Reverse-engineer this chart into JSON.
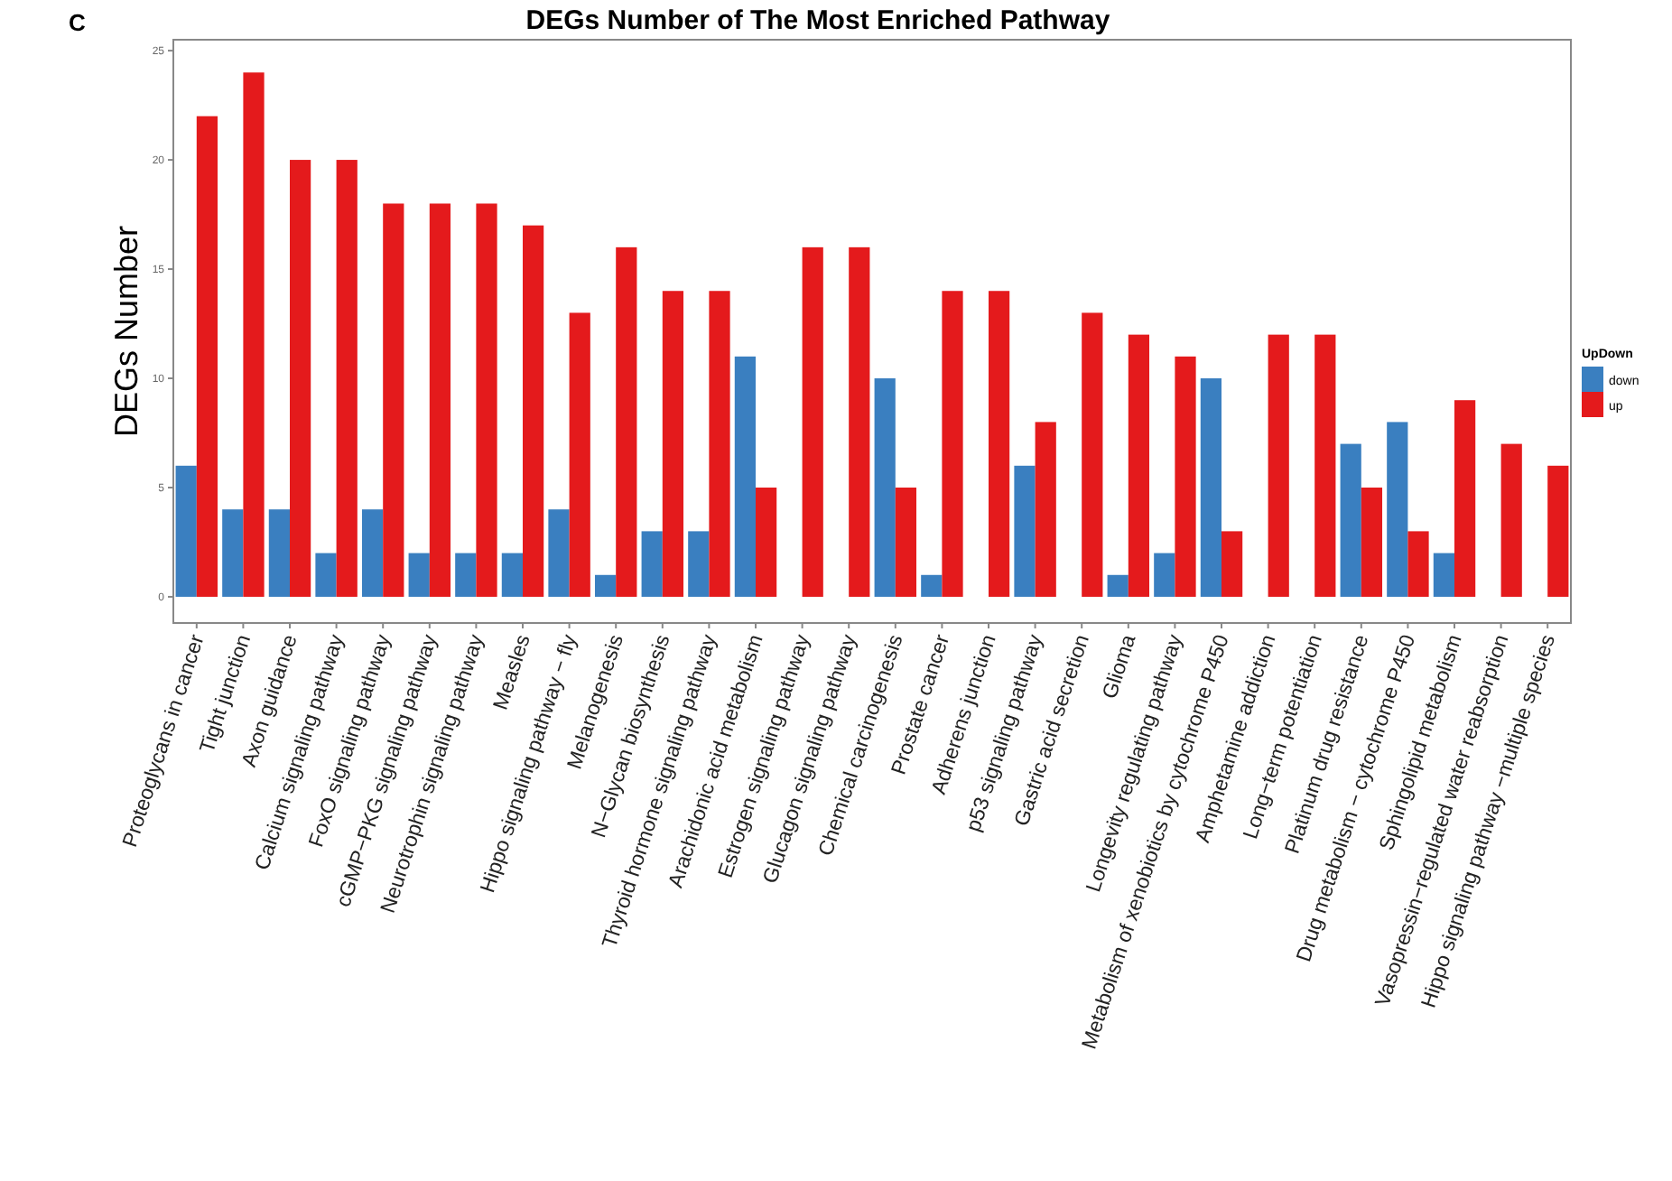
{
  "chart_data": {
    "type": "bar",
    "title": "DEGs Number of The Most Enriched Pathway",
    "ylabel": "DEGs Number",
    "legend_title": "UpDown",
    "annotations": [
      "C"
    ],
    "categories": [
      "Proteoglycans in cancer",
      "Tight junction",
      "Axon guidance",
      "Calcium signaling pathway",
      "FoxO signaling pathway",
      "cGMP−PKG signaling pathway",
      "Neurotrophin signaling pathway",
      "Measles",
      "Hippo signaling pathway − fly",
      "Melanogenesis",
      "N−Glycan biosynthesis",
      "Thyroid hormone signaling pathway",
      "Arachidonic acid metabolism",
      "Estrogen signaling pathway",
      "Glucagon signaling pathway",
      "Chemical carcinogenesis",
      "Prostate cancer",
      "Adherens junction",
      "p53 signaling pathway",
      "Gastric acid secretion",
      "Glioma",
      "Longevity regulating pathway",
      "Metabolism of xenobiotics by cytochrome P450",
      "Amphetamine addiction",
      "Long−term potentiation",
      "Platinum drug resistance",
      "Drug metabolism − cytochrome P450",
      "Sphingolipid metabolism",
      "Vasopressin−regulated water reabsorption",
      "Hippo signaling pathway −multiple species"
    ],
    "series": [
      {
        "name": "down",
        "color": "#3a7fc0",
        "values": [
          6,
          4,
          4,
          2,
          4,
          2,
          2,
          2,
          4,
          1,
          3,
          3,
          11,
          null,
          null,
          10,
          1,
          null,
          6,
          null,
          1,
          2,
          10,
          null,
          null,
          7,
          8,
          2,
          null,
          null
        ]
      },
      {
        "name": "up",
        "color": "#e41a1c",
        "values": [
          22,
          24,
          20,
          20,
          18,
          18,
          18,
          17,
          13,
          16,
          14,
          14,
          5,
          16,
          16,
          5,
          14,
          14,
          8,
          13,
          12,
          11,
          3,
          12,
          12,
          5,
          3,
          9,
          7,
          6
        ]
      }
    ],
    "ylim": [
      -1.2,
      25.5
    ],
    "yticks": [
      0,
      5,
      10,
      15,
      20,
      25
    ],
    "grid": false,
    "legend": "right"
  }
}
